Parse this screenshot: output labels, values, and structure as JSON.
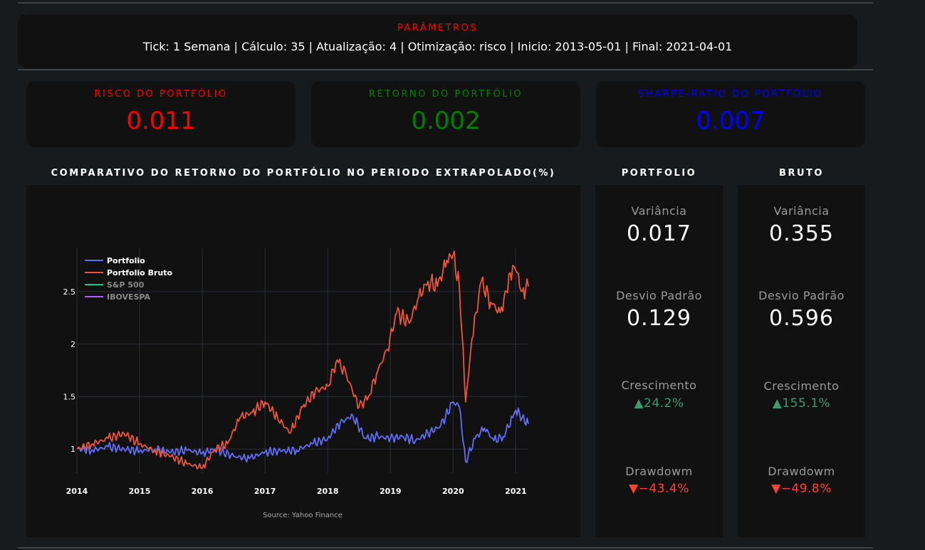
{
  "params": {
    "title": "PARÂMETROS",
    "text": "Tick: 1 Semana | Cálculo: 35 | Atualização: 4 | Otimização: risco | Inicio: 2013-05-01 | Final: 2021-04-01"
  },
  "kpis": [
    {
      "title": "RISCO DO PORTFÓLIO",
      "value": "0.011",
      "color": "#ff0000"
    },
    {
      "title": "RETORNO DO PORTFÓLIO",
      "value": "0.002",
      "color": "#008000"
    },
    {
      "title": "SHARPE-RATIO DO PORTFÓLIO",
      "value": "0.007",
      "color": "#0000ff"
    }
  ],
  "chart_title": "COMPARATIVO DO RETORNO DO PORTFÓLIO NO PERIODO EXTRAPOLADO(%)",
  "portfolio_panel": {
    "title": "PORTFOLIO",
    "variancia_label": "Variância",
    "variancia": "0.017",
    "desvio_label": "Desvio Padrão",
    "desvio": "0.129",
    "crescimento_label": "Crescimento",
    "crescimento": "▲24.2%",
    "drawdown_label": "Drawdowm",
    "drawdown": "▼−43.4%"
  },
  "bruto_panel": {
    "title": "BRUTO",
    "variancia_label": "Variância",
    "variancia": "0.355",
    "desvio_label": "Desvio Padrão",
    "desvio": "0.596",
    "crescimento_label": "Crescimento",
    "crescimento": "▲155.1%",
    "drawdown_label": "Drawdowm",
    "drawdown": "▼−49.8%"
  },
  "colors": {
    "up": "#3d9970",
    "down": "#ff4136",
    "background": "#181b1e",
    "panel": "#111111"
  },
  "chart_data": {
    "type": "line",
    "title": "",
    "annotation": "Source: Yahoo Finance",
    "xlim": [
      2014.0,
      2021.2
    ],
    "ylim": [
      0.77,
      2.92
    ],
    "x_ticks": [
      2014,
      2015,
      2016,
      2017,
      2018,
      2019,
      2020,
      2021
    ],
    "y_ticks": [
      1,
      1.5,
      2,
      2.5
    ],
    "grid": true,
    "legend_position": "top-left",
    "series": [
      {
        "name": "Portfolio",
        "color": "#636efa",
        "x": [
          2014.0,
          2014.25,
          2014.5,
          2014.75,
          2015.0,
          2015.25,
          2015.5,
          2015.75,
          2016.0,
          2016.2,
          2016.5,
          2016.75,
          2017.0,
          2017.25,
          2017.5,
          2017.75,
          2018.0,
          2018.2,
          2018.4,
          2018.6,
          2018.8,
          2019.0,
          2019.2,
          2019.4,
          2019.6,
          2019.8,
          2020.0,
          2020.1,
          2020.2,
          2020.35,
          2020.5,
          2020.65,
          2020.8,
          2020.95,
          2021.0,
          2021.1,
          2021.2
        ],
        "y": [
          1.0,
          0.99,
          1.02,
          1.0,
          0.98,
          1.0,
          0.97,
          0.99,
          0.96,
          1.0,
          0.93,
          0.91,
          0.97,
          0.98,
          0.99,
          1.05,
          1.1,
          1.25,
          1.32,
          1.1,
          1.12,
          1.1,
          1.12,
          1.08,
          1.15,
          1.22,
          1.45,
          1.4,
          0.88,
          1.1,
          1.2,
          1.08,
          1.12,
          1.3,
          1.37,
          1.3,
          1.24
        ]
      },
      {
        "name": "Portfolio Bruto",
        "color": "#ef553b",
        "x": [
          2014.0,
          2014.25,
          2014.5,
          2014.75,
          2015.0,
          2015.25,
          2015.5,
          2015.75,
          2016.0,
          2016.2,
          2016.4,
          2016.6,
          2016.8,
          2017.0,
          2017.2,
          2017.4,
          2017.6,
          2017.8,
          2018.0,
          2018.15,
          2018.3,
          2018.5,
          2018.65,
          2018.8,
          2018.95,
          2019.1,
          2019.3,
          2019.45,
          2019.6,
          2019.75,
          2019.9,
          2020.0,
          2020.1,
          2020.2,
          2020.3,
          2020.45,
          2020.6,
          2020.75,
          2020.85,
          2020.95,
          2021.0,
          2021.1,
          2021.2
        ],
        "y": [
          1.0,
          1.05,
          1.1,
          1.15,
          1.05,
          0.98,
          0.93,
          0.86,
          0.82,
          1.0,
          1.05,
          1.3,
          1.35,
          1.45,
          1.3,
          1.15,
          1.4,
          1.55,
          1.6,
          1.85,
          1.7,
          1.4,
          1.5,
          1.75,
          1.95,
          2.3,
          2.2,
          2.45,
          2.6,
          2.55,
          2.8,
          2.85,
          2.55,
          1.45,
          2.05,
          2.6,
          2.4,
          2.3,
          2.5,
          2.75,
          2.7,
          2.5,
          2.55
        ]
      },
      {
        "name": "S&P 500",
        "color": "#00cc96",
        "x": [],
        "y": []
      },
      {
        "name": "IBOVESPA",
        "color": "#ab63fa",
        "x": [],
        "y": []
      }
    ]
  }
}
